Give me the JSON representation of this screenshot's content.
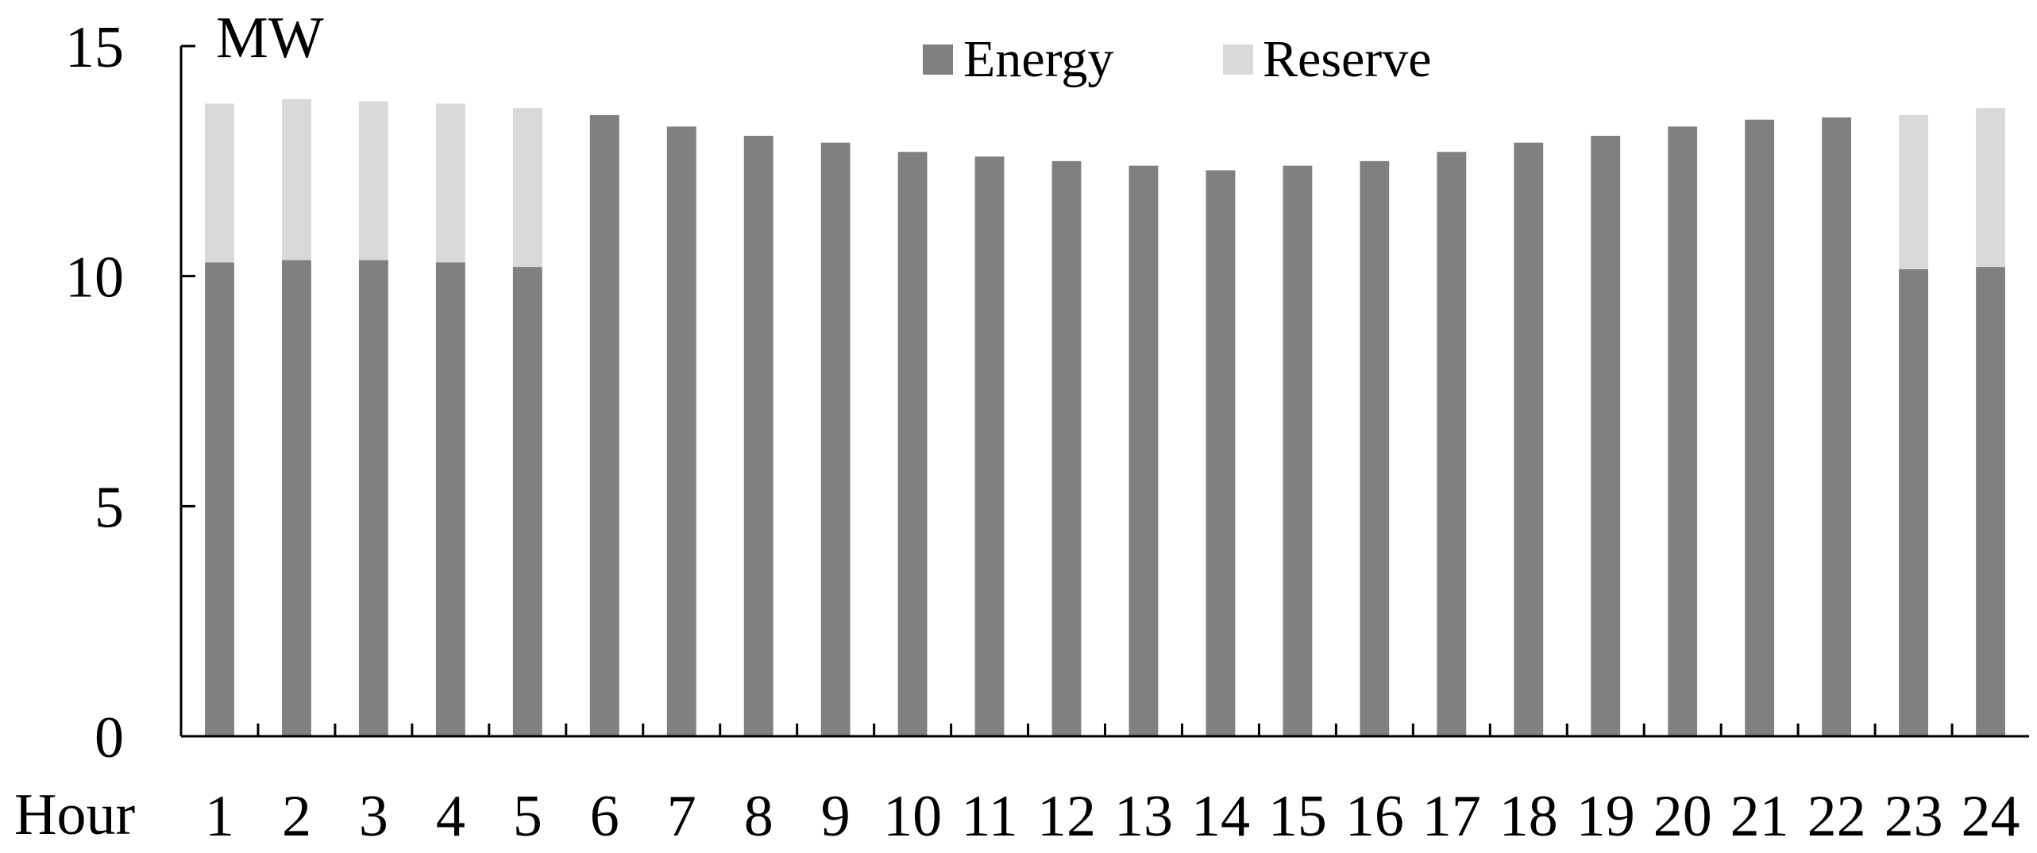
{
  "chart_data": {
    "type": "bar",
    "stacked": true,
    "categories": [
      "1",
      "2",
      "3",
      "4",
      "5",
      "6",
      "7",
      "8",
      "9",
      "10",
      "11",
      "12",
      "13",
      "14",
      "15",
      "16",
      "17",
      "18",
      "19",
      "20",
      "21",
      "22",
      "23",
      "24"
    ],
    "series": [
      {
        "name": "Energy",
        "color": "#808080",
        "values": [
          10.3,
          10.35,
          10.35,
          10.3,
          10.2,
          13.5,
          13.25,
          13.05,
          12.9,
          12.7,
          12.6,
          12.5,
          12.4,
          12.3,
          12.4,
          12.5,
          12.7,
          12.9,
          13.05,
          13.25,
          13.4,
          13.45,
          10.15,
          10.2
        ]
      },
      {
        "name": "Reserve",
        "color": "#d9d9d9",
        "values": [
          3.45,
          3.5,
          3.45,
          3.45,
          3.45,
          0,
          0,
          0,
          0,
          0,
          0,
          0,
          0,
          0,
          0,
          0,
          0,
          0,
          0,
          0,
          0,
          0,
          3.35,
          3.45
        ]
      }
    ],
    "yunit": "MW",
    "xlabel": "Hour",
    "ylim": [
      0,
      15
    ],
    "yticks": [
      0,
      5,
      10,
      15
    ],
    "grid": false,
    "legend_position": "top-center"
  }
}
